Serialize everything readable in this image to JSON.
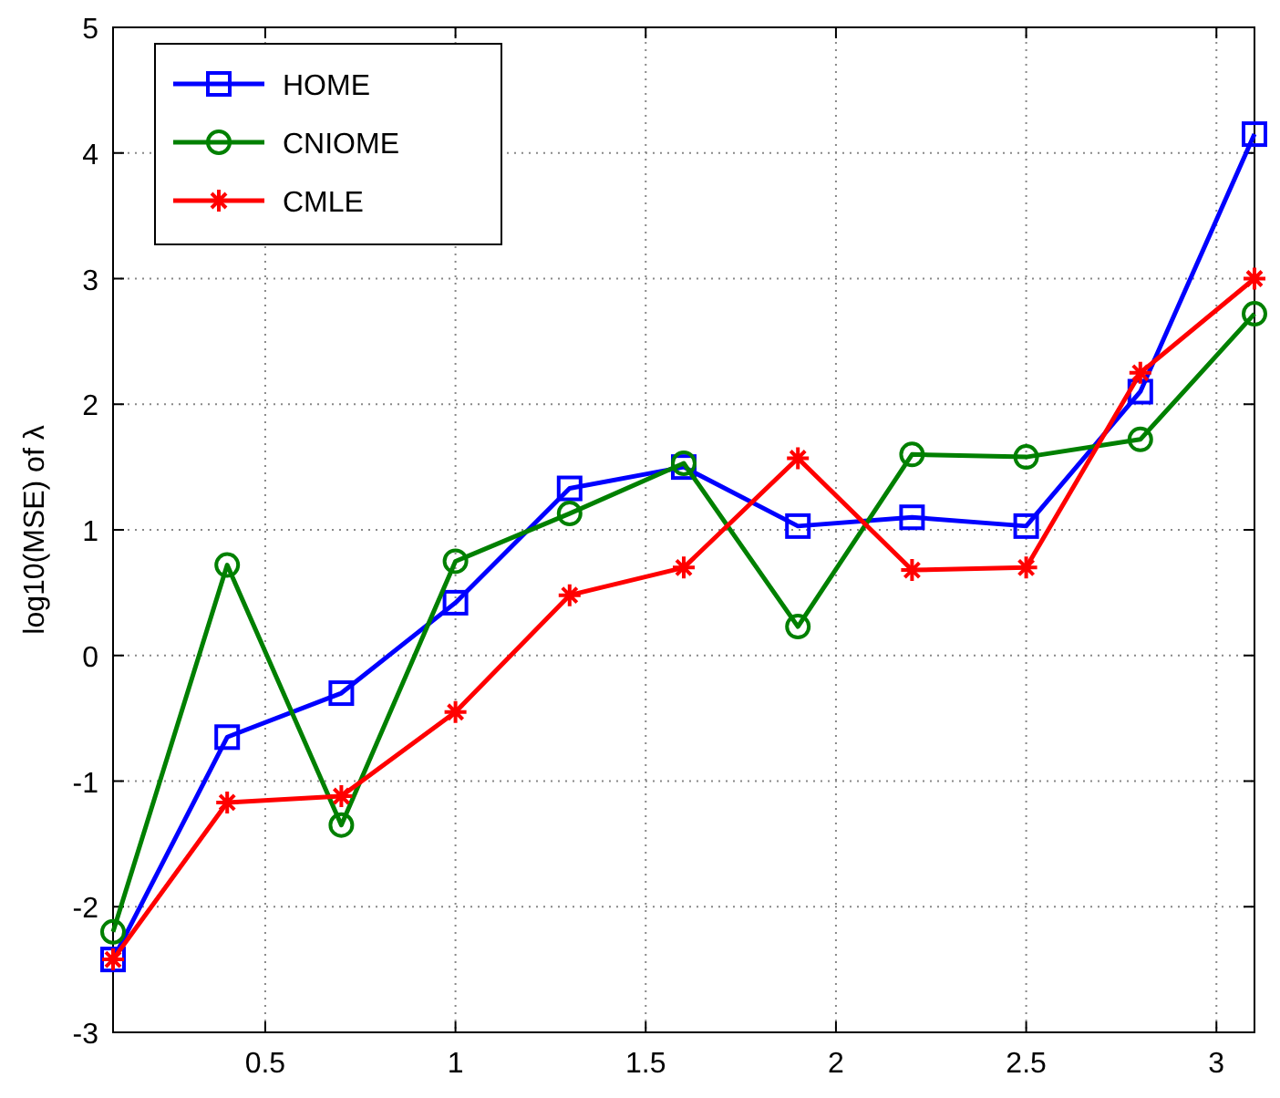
{
  "chart_data": {
    "type": "line",
    "ylabel": "log10(MSE) of λ",
    "x": [
      0.1,
      0.4,
      0.7,
      1.0,
      1.3,
      1.6,
      1.9,
      2.2,
      2.5,
      2.8,
      3.1
    ],
    "series": [
      {
        "name": "HOME",
        "color": "#0000ff",
        "marker": "square",
        "values": [
          -2.42,
          -0.65,
          -0.3,
          0.42,
          1.33,
          1.5,
          1.03,
          1.1,
          1.03,
          2.1,
          4.15
        ]
      },
      {
        "name": "CNIOME",
        "color": "#008000",
        "marker": "circle",
        "values": [
          -2.2,
          0.72,
          -1.35,
          0.75,
          1.13,
          1.53,
          0.23,
          1.6,
          1.58,
          1.72,
          2.72
        ]
      },
      {
        "name": "CMLE",
        "color": "#ff0000",
        "marker": "cross",
        "values": [
          -2.42,
          -1.17,
          -1.12,
          -0.45,
          0.48,
          0.7,
          1.57,
          0.68,
          0.7,
          2.25,
          3.0
        ]
      }
    ],
    "xlim": [
      0.1,
      3.1
    ],
    "xticks": [
      0.5,
      1,
      1.5,
      2,
      2.5,
      3
    ],
    "ylim": [
      -3,
      5
    ],
    "yticks": [
      -3,
      -2,
      -1,
      0,
      1,
      2,
      3,
      4,
      5
    ],
    "grid": true,
    "legend": "top left",
    "line_style": "solid"
  }
}
